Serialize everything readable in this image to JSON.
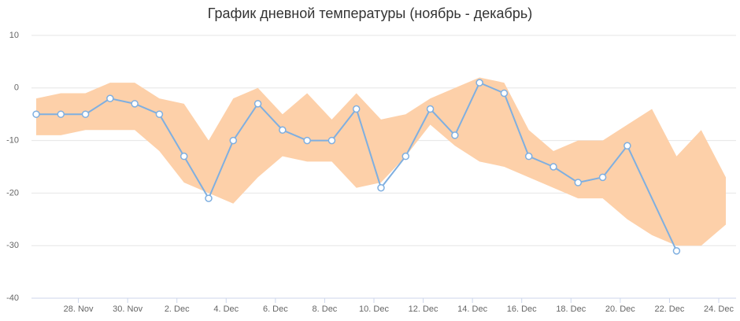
{
  "chart_data": {
    "type": "line",
    "title": "График дневной температуры (ноябрь - декабрь)",
    "categories": [
      null,
      null,
      "28. Nov",
      null,
      "30. Nov",
      null,
      "2. Dec",
      null,
      "4. Dec",
      null,
      "6. Dec",
      null,
      "8. Dec",
      null,
      "10. Dec",
      null,
      "12. Dec",
      null,
      "14. Dec",
      null,
      "16. Dec",
      null,
      "18. Dec",
      null,
      "20. Dec",
      null,
      "22. Dec",
      null,
      "24. Dec"
    ],
    "range": {
      "color": "#fdd0a9",
      "high": [
        -2,
        -1,
        -1,
        1,
        1,
        -2,
        -3,
        -10,
        -2,
        0,
        -5,
        -1,
        -6,
        -1,
        -6,
        -5,
        -2,
        0,
        2,
        1,
        -8,
        -12,
        -10,
        -10,
        -7,
        -4,
        -13,
        -8,
        -17
      ],
      "low": [
        -9,
        -9,
        -8,
        -8,
        -8,
        -12,
        -18,
        -20,
        -22,
        -17,
        -13,
        -14,
        -14,
        -19,
        -18,
        -13,
        -7,
        -11,
        -14,
        -15,
        -17,
        -19,
        -21,
        -21,
        -25,
        -28,
        -30,
        -30,
        -26
      ]
    },
    "series": [
      {
        "color": "#7fafe0",
        "values": [
          -5,
          -5,
          -5,
          -2,
          -3,
          -5,
          -13,
          -21,
          -10,
          -3,
          -8,
          -10,
          -10,
          -4,
          -19,
          -13,
          -4,
          -9,
          1,
          -1,
          -13,
          -15,
          -18,
          -17,
          -11,
          null,
          -31,
          null,
          null
        ]
      }
    ],
    "connect_nulls": true,
    "ylim": [
      -40,
      10
    ],
    "yticks": [
      -40,
      -30,
      -20,
      -10,
      0,
      10
    ],
    "grid": true
  }
}
